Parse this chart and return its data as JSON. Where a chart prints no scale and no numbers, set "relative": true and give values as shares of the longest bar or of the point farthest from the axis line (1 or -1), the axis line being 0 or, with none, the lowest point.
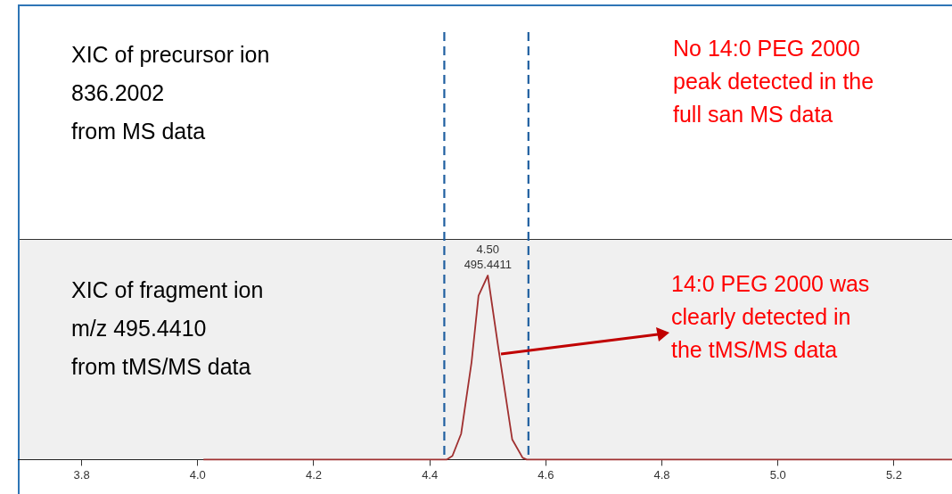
{
  "chart_data": [
    {
      "type": "other",
      "annotations": [
        "XIC of precursor ion\n836.2002\nfrom MS data",
        "No 14:0 PEG 2000\npeak detected in the\nfull san MS data"
      ]
    },
    {
      "type": "line",
      "relative": true,
      "xlim": [
        3.69,
        5.3
      ],
      "xticks": [
        3.8,
        {
          "value": 4.0,
          "label": "4.0"
        },
        4.2,
        4.4,
        4.6,
        4.8,
        {
          "value": 5.0,
          "label": "5.0"
        },
        5.2
      ],
      "grid": false,
      "legend": false,
      "marker": "none",
      "line_style": "solid",
      "series": [
        {
          "color": "#a03030",
          "x": [
            4.01,
            4.42,
            4.429,
            4.439,
            4.454,
            4.472,
            4.484,
            4.5,
            4.518,
            4.542,
            4.56,
            4.567,
            5.3
          ],
          "values": [
            0,
            0,
            0,
            0.02,
            0.14,
            0.53,
            0.89,
            1,
            0.61,
            0.11,
            0.01,
            0,
            0
          ]
        }
      ],
      "ref_lines": [
        {
          "axis": "x",
          "value": 4.425,
          "color": "#1f5fa0",
          "line_style": "dashed"
        },
        {
          "axis": "x",
          "value": 4.57,
          "color": "#1f5fa0",
          "line_style": "dashed"
        }
      ],
      "annotations": [
        "XIC of fragment ion\nm/z 495.4410\nfrom tMS/MS data",
        "14:0 PEG 2000 was\nclearly detected in\nthe tMS/MS data",
        {
          "text": "4.50\n495.4411",
          "x": 4.5,
          "y": 1
        }
      ]
    }
  ]
}
